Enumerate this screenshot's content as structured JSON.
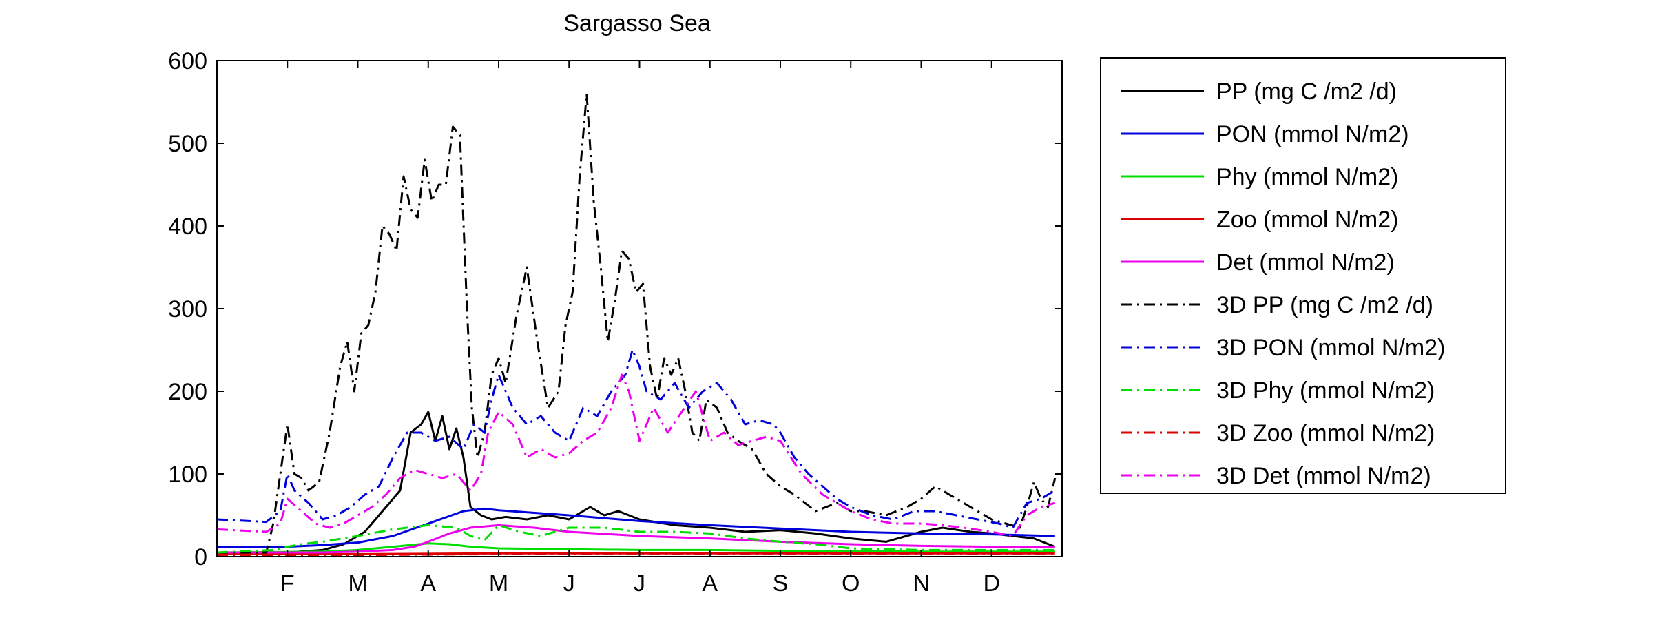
{
  "chart_data": {
    "type": "line",
    "title": "Sargasso Sea",
    "xlabel": "",
    "ylabel": "",
    "xlim": [
      0,
      12
    ],
    "ylim": [
      0,
      600
    ],
    "yticks": [
      0,
      100,
      200,
      300,
      400,
      500,
      600
    ],
    "month_ticks": [
      {
        "x": 1,
        "label": "F"
      },
      {
        "x": 2,
        "label": "M"
      },
      {
        "x": 3,
        "label": "A"
      },
      {
        "x": 4,
        "label": "M"
      },
      {
        "x": 5,
        "label": "J"
      },
      {
        "x": 6,
        "label": "J"
      },
      {
        "x": 7,
        "label": "A"
      },
      {
        "x": 8,
        "label": "S"
      },
      {
        "x": 9,
        "label": "O"
      },
      {
        "x": 10,
        "label": "N"
      },
      {
        "x": 11,
        "label": "D"
      }
    ],
    "grid": false,
    "legend_position": "outside-right",
    "series": [
      {
        "name": "PP (mg C /m2 /d)",
        "color": "#000000",
        "dash": "solid",
        "x": [
          0,
          1,
          1.5,
          1.8,
          2.1,
          2.3,
          2.6,
          2.75,
          2.9,
          3.0,
          3.1,
          3.2,
          3.3,
          3.4,
          3.5,
          3.6,
          3.75,
          3.9,
          4.1,
          4.4,
          4.7,
          5.0,
          5.3,
          5.5,
          5.7,
          6.0,
          6.5,
          7.0,
          7.5,
          8.0,
          8.5,
          9.0,
          9.5,
          10.0,
          10.3,
          10.7,
          11.0,
          11.3,
          11.6,
          11.9
        ],
        "y": [
          5,
          5,
          8,
          15,
          30,
          50,
          80,
          150,
          160,
          175,
          140,
          170,
          130,
          155,
          120,
          60,
          50,
          45,
          48,
          45,
          50,
          45,
          60,
          50,
          55,
          45,
          38,
          35,
          30,
          32,
          28,
          22,
          18,
          30,
          35,
          30,
          28,
          25,
          22,
          12
        ]
      },
      {
        "name": "PON (mmol N/m2)",
        "color": "#0000dd",
        "dash": "solid",
        "x": [
          0,
          1,
          1.5,
          2,
          2.5,
          3,
          3.5,
          3.8,
          4,
          5,
          6,
          7,
          8,
          9,
          10,
          11,
          11.9
        ],
        "y": [
          12,
          12,
          14,
          17,
          25,
          40,
          55,
          58,
          56,
          50,
          43,
          38,
          34,
          30,
          28,
          27,
          25
        ]
      },
      {
        "name": "Phy (mmol N/m2)",
        "color": "#00dd00",
        "dash": "solid",
        "x": [
          0,
          1.5,
          2,
          2.5,
          3,
          3.3,
          3.6,
          4,
          5,
          6,
          7,
          8,
          9,
          10,
          11,
          11.9
        ],
        "y": [
          5,
          6,
          8,
          12,
          16,
          15,
          12,
          10,
          9,
          8,
          8,
          7,
          7,
          6,
          6,
          6
        ]
      },
      {
        "name": "Zoo (mmol N/m2)",
        "color": "#dd0000",
        "dash": "solid",
        "x": [
          0,
          2,
          4,
          6,
          8,
          10,
          11.9
        ],
        "y": [
          3,
          3,
          4,
          4,
          4,
          4,
          4
        ]
      },
      {
        "name": "Det (mmol N/m2)",
        "color": "#ee00ee",
        "dash": "solid",
        "x": [
          0,
          1.5,
          2,
          2.5,
          2.8,
          3,
          3.3,
          3.6,
          4,
          4.5,
          5,
          6,
          7,
          8,
          9,
          10,
          11,
          11.9
        ],
        "y": [
          5,
          5,
          6,
          8,
          12,
          18,
          28,
          35,
          38,
          35,
          30,
          25,
          22,
          18,
          15,
          13,
          12,
          12
        ]
      },
      {
        "name": "3D PP (mg C /m2 /d)",
        "color": "#000000",
        "dash": "dashdot",
        "x": [
          0,
          0.7,
          0.8,
          0.9,
          1.0,
          1.1,
          1.2,
          1.3,
          1.45,
          1.6,
          1.75,
          1.85,
          1.95,
          2.05,
          2.15,
          2.25,
          2.35,
          2.45,
          2.55,
          2.65,
          2.75,
          2.85,
          2.95,
          3.05,
          3.15,
          3.25,
          3.35,
          3.45,
          3.55,
          3.62,
          3.7,
          3.8,
          3.9,
          4.0,
          4.1,
          4.25,
          4.4,
          4.55,
          4.7,
          4.85,
          4.95,
          5.05,
          5.15,
          5.25,
          5.35,
          5.45,
          5.55,
          5.65,
          5.75,
          5.85,
          5.95,
          6.05,
          6.15,
          6.25,
          6.35,
          6.45,
          6.55,
          6.65,
          6.75,
          6.85,
          6.95,
          7.1,
          7.25,
          7.4,
          7.6,
          7.8,
          8.0,
          8.2,
          8.5,
          8.8,
          9.0,
          9.2,
          9.5,
          9.8,
          10.0,
          10.2,
          10.4,
          10.6,
          10.8,
          11.0,
          11.2,
          11.4,
          11.5,
          11.6,
          11.7,
          11.8,
          11.9
        ],
        "y": [
          5,
          5,
          40,
          100,
          160,
          100,
          95,
          80,
          90,
          150,
          230,
          260,
          200,
          270,
          280,
          320,
          400,
          390,
          370,
          460,
          420,
          410,
          480,
          430,
          450,
          450,
          520,
          510,
          300,
          180,
          120,
          150,
          220,
          240,
          210,
          290,
          350,
          260,
          180,
          200,
          280,
          320,
          460,
          560,
          430,
          350,
          260,
          310,
          370,
          360,
          320,
          330,
          230,
          190,
          240,
          220,
          240,
          200,
          150,
          140,
          190,
          180,
          150,
          140,
          130,
          100,
          85,
          75,
          55,
          65,
          55,
          55,
          50,
          60,
          70,
          85,
          75,
          65,
          55,
          45,
          40,
          35,
          60,
          90,
          70,
          60,
          95
        ]
      },
      {
        "name": "3D PON (mmol N/m2)",
        "color": "#0000dd",
        "dash": "dashdot",
        "x": [
          0,
          0.7,
          0.9,
          1.0,
          1.1,
          1.3,
          1.5,
          1.7,
          1.9,
          2.1,
          2.3,
          2.5,
          2.7,
          2.9,
          3.1,
          3.3,
          3.5,
          3.65,
          3.8,
          3.9,
          4.0,
          4.1,
          4.2,
          4.4,
          4.6,
          4.8,
          5.0,
          5.2,
          5.4,
          5.6,
          5.8,
          5.9,
          6.0,
          6.1,
          6.3,
          6.5,
          6.7,
          6.9,
          7.1,
          7.3,
          7.5,
          7.7,
          7.9,
          8.0,
          8.2,
          8.4,
          8.6,
          8.8,
          9.0,
          9.3,
          9.6,
          9.9,
          10.2,
          10.5,
          10.8,
          11.1,
          11.3,
          11.5,
          11.7,
          11.9
        ],
        "y": [
          45,
          42,
          55,
          100,
          80,
          65,
          45,
          50,
          60,
          75,
          85,
          120,
          150,
          150,
          140,
          145,
          130,
          160,
          150,
          190,
          220,
          200,
          180,
          160,
          170,
          150,
          140,
          180,
          170,
          200,
          220,
          250,
          230,
          200,
          190,
          210,
          180,
          200,
          210,
          190,
          160,
          165,
          160,
          150,
          120,
          100,
          85,
          70,
          60,
          50,
          45,
          55,
          55,
          50,
          45,
          40,
          35,
          65,
          70,
          80
        ]
      },
      {
        "name": "3D Phy (mmol N/m2)",
        "color": "#00dd00",
        "dash": "dashdot",
        "x": [
          0,
          0.8,
          1.0,
          1.2,
          1.5,
          2.0,
          2.5,
          3.0,
          3.4,
          3.6,
          3.8,
          4.0,
          4.3,
          4.6,
          5.0,
          5.5,
          6.0,
          6.5,
          7.0,
          7.5,
          8.0,
          8.5,
          9.0,
          10.0,
          11.0,
          11.9
        ],
        "y": [
          5,
          8,
          12,
          15,
          18,
          25,
          33,
          38,
          35,
          25,
          20,
          38,
          30,
          25,
          35,
          35,
          30,
          30,
          28,
          22,
          18,
          15,
          10,
          8,
          8,
          8
        ]
      },
      {
        "name": "3D Zoo (mmol N/m2)",
        "color": "#dd0000",
        "dash": "dashdot",
        "x": [
          0,
          2,
          4,
          6,
          8,
          10,
          11.9
        ],
        "y": [
          2,
          2,
          3,
          3,
          3,
          3,
          3
        ]
      },
      {
        "name": "3D Det (mmol N/m2)",
        "color": "#ee00ee",
        "dash": "dashdot",
        "x": [
          0,
          0.7,
          0.9,
          1.0,
          1.2,
          1.4,
          1.6,
          1.8,
          2.0,
          2.2,
          2.4,
          2.6,
          2.8,
          3.0,
          3.2,
          3.4,
          3.6,
          3.75,
          3.85,
          4.0,
          4.2,
          4.4,
          4.6,
          4.8,
          5.0,
          5.2,
          5.4,
          5.6,
          5.75,
          5.85,
          6.0,
          6.2,
          6.4,
          6.6,
          6.8,
          7.0,
          7.2,
          7.4,
          7.6,
          7.8,
          8.0,
          8.3,
          8.6,
          9.0,
          9.3,
          9.6,
          10.0,
          10.3,
          10.6,
          11.0,
          11.3,
          11.5,
          11.7,
          11.9
        ],
        "y": [
          33,
          30,
          40,
          70,
          55,
          40,
          35,
          40,
          50,
          60,
          75,
          95,
          105,
          100,
          95,
          100,
          80,
          100,
          150,
          175,
          160,
          120,
          130,
          120,
          125,
          140,
          150,
          180,
          220,
          200,
          140,
          180,
          150,
          175,
          200,
          140,
          150,
          135,
          140,
          145,
          140,
          100,
          75,
          55,
          45,
          40,
          40,
          38,
          35,
          30,
          25,
          50,
          60,
          65
        ]
      }
    ]
  }
}
